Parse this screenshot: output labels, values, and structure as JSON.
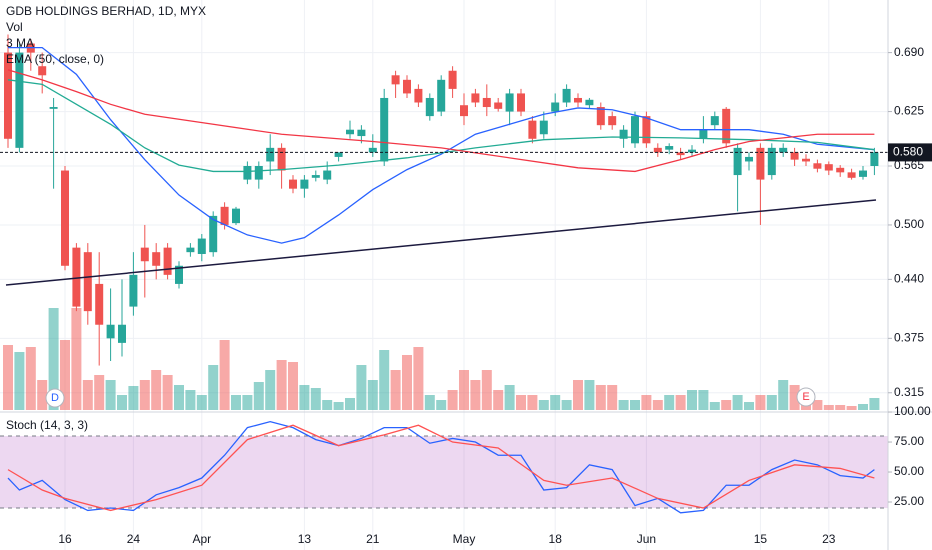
{
  "chart_data": [
    {
      "type": "candlestick",
      "title": "GDB HOLDINGS BERHAD, 1D, MYX",
      "categories": [
        null,
        null,
        null,
        null,
        null,
        "16",
        null,
        null,
        null,
        null,
        null,
        "24",
        null,
        null,
        null,
        null,
        null,
        "Apr",
        null,
        null,
        null,
        null,
        null,
        null,
        null,
        null,
        "13",
        null,
        null,
        null,
        null,
        null,
        "21",
        null,
        null,
        null,
        null,
        null,
        null,
        null,
        "May",
        null,
        null,
        null,
        null,
        null,
        null,
        null,
        "18",
        null,
        null,
        null,
        null,
        null,
        null,
        null,
        "Jun",
        null,
        null,
        null,
        null,
        null,
        null,
        null,
        null,
        null,
        "15",
        null,
        null,
        null,
        null,
        null,
        "23",
        null,
        null,
        null,
        null
      ],
      "ohlc": [
        [
          0.69,
          0.71,
          0.585,
          0.595
        ],
        [
          0.585,
          0.7,
          0.58,
          0.69
        ],
        [
          0.7,
          0.705,
          0.67,
          0.69
        ],
        [
          0.675,
          0.69,
          0.645,
          0.665
        ],
        [
          0.628,
          0.64,
          0.54,
          0.63
        ],
        [
          0.56,
          0.565,
          0.45,
          0.455
        ],
        [
          0.475,
          0.48,
          0.405,
          0.41
        ],
        [
          0.47,
          0.48,
          0.39,
          0.405
        ],
        [
          0.435,
          0.47,
          0.345,
          0.39
        ],
        [
          0.375,
          0.43,
          0.35,
          0.39
        ],
        [
          0.37,
          0.44,
          0.355,
          0.39
        ],
        [
          0.41,
          0.47,
          0.4,
          0.445
        ],
        [
          0.475,
          0.5,
          0.42,
          0.46
        ],
        [
          0.47,
          0.48,
          0.44,
          0.455
        ],
        [
          0.475,
          0.48,
          0.44,
          0.445
        ],
        [
          0.435,
          0.46,
          0.43,
          0.455
        ],
        [
          0.47,
          0.48,
          0.465,
          0.475
        ],
        [
          0.468,
          0.49,
          0.46,
          0.485
        ],
        [
          0.47,
          0.515,
          0.465,
          0.51
        ],
        [
          0.52,
          0.525,
          0.495,
          0.5
        ],
        [
          0.502,
          0.52,
          0.5,
          0.518
        ],
        [
          0.55,
          0.57,
          0.545,
          0.565
        ],
        [
          0.55,
          0.57,
          0.54,
          0.565
        ],
        [
          0.57,
          0.6,
          0.555,
          0.585
        ],
        [
          0.585,
          0.59,
          0.54,
          0.56
        ],
        [
          0.55,
          0.555,
          0.535,
          0.54
        ],
        [
          0.54,
          0.555,
          0.53,
          0.55
        ],
        [
          0.552,
          0.56,
          0.548,
          0.555
        ],
        [
          0.55,
          0.57,
          0.545,
          0.56
        ],
        [
          0.575,
          0.58,
          0.57,
          0.58
        ],
        [
          0.6,
          0.615,
          0.595,
          0.605
        ],
        [
          0.598,
          0.61,
          0.59,
          0.605
        ],
        [
          0.58,
          0.6,
          0.575,
          0.585
        ],
        [
          0.57,
          0.65,
          0.565,
          0.64
        ],
        [
          0.665,
          0.67,
          0.64,
          0.655
        ],
        [
          0.66,
          0.665,
          0.64,
          0.645
        ],
        [
          0.65,
          0.655,
          0.63,
          0.635
        ],
        [
          0.62,
          0.645,
          0.615,
          0.64
        ],
        [
          0.625,
          0.665,
          0.62,
          0.66
        ],
        [
          0.67,
          0.675,
          0.64,
          0.65
        ],
        [
          0.632,
          0.645,
          0.61,
          0.62
        ],
        [
          0.645,
          0.65,
          0.63,
          0.635
        ],
        [
          0.64,
          0.655,
          0.62,
          0.63
        ],
        [
          0.635,
          0.64,
          0.625,
          0.628
        ],
        [
          0.625,
          0.65,
          0.61,
          0.645
        ],
        [
          0.645,
          0.65,
          0.62,
          0.625
        ],
        [
          0.615,
          0.62,
          0.59,
          0.595
        ],
        [
          0.6,
          0.625,
          0.595,
          0.615
        ],
        [
          0.625,
          0.645,
          0.62,
          0.635
        ],
        [
          0.635,
          0.655,
          0.63,
          0.65
        ],
        [
          0.64,
          0.645,
          0.63,
          0.635
        ],
        [
          0.632,
          0.64,
          0.628,
          0.638
        ],
        [
          0.63,
          0.635,
          0.605,
          0.61
        ],
        [
          0.62,
          0.625,
          0.605,
          0.61
        ],
        [
          0.595,
          0.61,
          0.585,
          0.605
        ],
        [
          0.59,
          0.625,
          0.585,
          0.62
        ],
        [
          0.62,
          0.625,
          0.585,
          0.59
        ],
        [
          0.585,
          0.59,
          0.575,
          0.58
        ],
        [
          0.583,
          0.59,
          0.578,
          0.587
        ],
        [
          0.58,
          0.585,
          0.572,
          0.577
        ],
        [
          0.58,
          0.588,
          0.575,
          0.583
        ],
        [
          0.595,
          0.62,
          0.59,
          0.605
        ],
        [
          0.61,
          0.625,
          0.605,
          0.62
        ],
        [
          0.628,
          0.63,
          0.585,
          0.59
        ],
        [
          0.555,
          0.59,
          0.515,
          0.585
        ],
        [
          0.57,
          0.58,
          0.56,
          0.575
        ],
        [
          0.585,
          0.59,
          0.5,
          0.55
        ],
        [
          0.555,
          0.59,
          0.55,
          0.585
        ],
        [
          0.58,
          0.59,
          0.575,
          0.585
        ],
        [
          0.58,
          0.585,
          0.565,
          0.572
        ],
        [
          0.573,
          0.578,
          0.565,
          0.57
        ],
        [
          0.568,
          0.572,
          0.558,
          0.562
        ],
        [
          0.567,
          0.57,
          0.555,
          0.56
        ],
        [
          0.563,
          0.566,
          0.553,
          0.558
        ],
        [
          0.558,
          0.562,
          0.55,
          0.552
        ],
        [
          0.553,
          0.565,
          0.55,
          0.56
        ],
        [
          0.565,
          0.585,
          0.555,
          0.58
        ]
      ],
      "up_color": "#26a69a",
      "down_color": "#ef5350",
      "volume": {
        "name": "Vol",
        "values": [
          65,
          58,
          63,
          30,
          102,
          70,
          102,
          30,
          35,
          30,
          15,
          24,
          30,
          40,
          35,
          25,
          20,
          15,
          45,
          70,
          15,
          15,
          28,
          40,
          50,
          48,
          25,
          22,
          10,
          8,
          12,
          45,
          30,
          60,
          40,
          55,
          63,
          15,
          10,
          20,
          40,
          30,
          40,
          20,
          25,
          15,
          15,
          10,
          15,
          10,
          30,
          30,
          25,
          25,
          10,
          10,
          15,
          10,
          15,
          15,
          20,
          20,
          8,
          10,
          15,
          8,
          15,
          15,
          30,
          25,
          10,
          10,
          5,
          5,
          4,
          6,
          12
        ]
      },
      "series": [
        {
          "name": "3 MA",
          "color": "#2962ff",
          "x": [
            0,
            3,
            6,
            9,
            12,
            15,
            18,
            21,
            24,
            26,
            29,
            32,
            35,
            38,
            41,
            44,
            47,
            50,
            53,
            56,
            59,
            62,
            65,
            68,
            71,
            76
          ],
          "values": [
            0.6955,
            0.6955,
            0.666,
            0.616,
            0.572,
            0.533,
            0.506,
            0.489,
            0.48,
            0.486,
            0.511,
            0.539,
            0.561,
            0.578,
            0.6,
            0.611,
            0.622,
            0.629,
            0.627,
            0.618,
            0.605,
            0.605,
            0.605,
            0.6,
            0.589,
            0.583
          ]
        },
        {
          "color": "#22ab94",
          "x": [
            0,
            3,
            6,
            9,
            12,
            15,
            18,
            21,
            24,
            29,
            35,
            41,
            47,
            53,
            59,
            65,
            71,
            76
          ],
          "values": [
            0.66,
            0.655,
            0.633,
            0.611,
            0.585,
            0.566,
            0.559,
            0.559,
            0.561,
            0.566,
            0.574,
            0.585,
            0.594,
            0.597,
            0.596,
            0.594,
            0.591,
            0.583
          ]
        },
        {
          "name": "EMA (50, close, 0)",
          "color": "#f23645",
          "x": [
            0,
            3,
            6,
            9,
            12,
            18,
            24,
            32,
            38,
            44,
            50,
            55,
            59,
            62,
            65,
            68,
            71,
            76
          ],
          "values": [
            0.671,
            0.66,
            0.647,
            0.633,
            0.622,
            0.611,
            0.6,
            0.592,
            0.585,
            0.574,
            0.563,
            0.559,
            0.572,
            0.583,
            0.592,
            0.596,
            0.6,
            0.6
          ]
        }
      ],
      "ylim": [
        0.296,
        0.748
      ],
      "yticks": [
        {
          "value": 0.69,
          "label": "0.690"
        },
        {
          "value": 0.625,
          "label": "0.625"
        },
        {
          "value": 0.565,
          "label": "0.565"
        },
        {
          "value": 0.5,
          "label": "0.500"
        },
        {
          "value": 0.44,
          "label": "0.440"
        },
        {
          "value": 0.375,
          "label": "0.375"
        },
        {
          "value": 0.315,
          "label": "0.315"
        }
      ],
      "last_price": {
        "value": 0.58,
        "label": "0.580"
      },
      "events": [
        "D",
        "E"
      ],
      "grid": true
    },
    {
      "type": "line",
      "title": "Stoch (14, 3, 3)",
      "series": [
        {
          "color": "#2962ff",
          "x": [
            0,
            1,
            3,
            5,
            7,
            9,
            11,
            13,
            15,
            17,
            19,
            21,
            23,
            25,
            27,
            29,
            31,
            33,
            35,
            37,
            39,
            41,
            43,
            45,
            47,
            49,
            51,
            53,
            55,
            57,
            59,
            61,
            63,
            65,
            67,
            69,
            71,
            73,
            75,
            76
          ],
          "values": [
            45,
            35,
            43,
            27,
            18,
            20,
            18,
            31,
            37,
            45,
            64,
            87,
            92,
            87,
            77,
            72,
            78,
            87,
            87,
            74,
            78,
            75,
            64,
            64,
            35,
            37,
            56,
            52,
            22,
            28,
            16,
            18,
            39,
            39,
            52,
            60,
            56,
            47,
            45,
            52
          ]
        },
        {
          "color": "#ff5252",
          "x": [
            0,
            3,
            5,
            9,
            13,
            17,
            21,
            25,
            29,
            33,
            36,
            39,
            43,
            47,
            49,
            53,
            57,
            61,
            65,
            69,
            73,
            76
          ],
          "values": [
            52,
            35,
            28,
            18,
            27,
            39,
            77,
            89,
            72,
            81,
            89,
            75,
            70,
            43,
            39,
            45,
            28,
            20,
            43,
            56,
            53,
            45
          ]
        }
      ],
      "band": [
        20,
        80
      ],
      "ylim": [
        -15,
        99.2
      ],
      "yticks": [
        {
          "value": 100,
          "label": "100.00"
        },
        {
          "value": 75,
          "label": "75.00"
        },
        {
          "value": 50,
          "label": "50.00"
        },
        {
          "value": 25,
          "label": "25.00"
        }
      ]
    }
  ]
}
